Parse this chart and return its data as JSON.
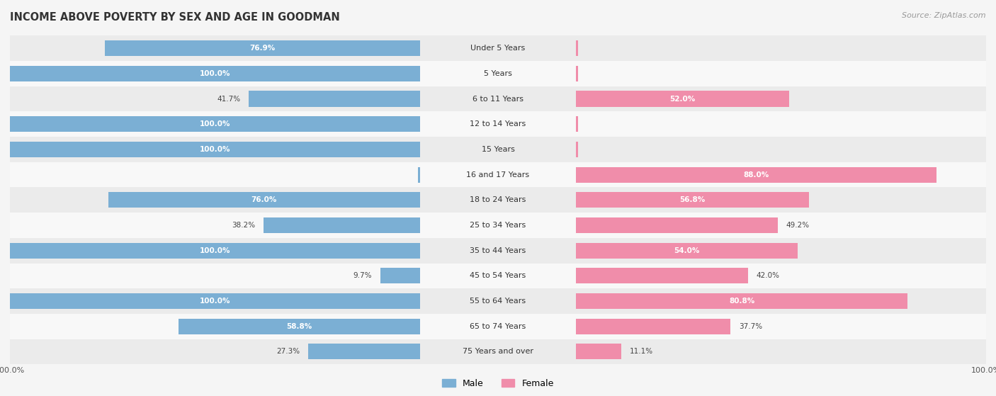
{
  "title": "INCOME ABOVE POVERTY BY SEX AND AGE IN GOODMAN",
  "source": "Source: ZipAtlas.com",
  "categories": [
    "Under 5 Years",
    "5 Years",
    "6 to 11 Years",
    "12 to 14 Years",
    "15 Years",
    "16 and 17 Years",
    "18 to 24 Years",
    "25 to 34 Years",
    "35 to 44 Years",
    "45 to 54 Years",
    "55 to 64 Years",
    "65 to 74 Years",
    "75 Years and over"
  ],
  "male_values": [
    76.9,
    100.0,
    41.7,
    100.0,
    100.0,
    0.0,
    76.0,
    38.2,
    100.0,
    9.7,
    100.0,
    58.8,
    27.3
  ],
  "female_values": [
    0.0,
    0.0,
    52.0,
    0.0,
    0.0,
    88.0,
    56.8,
    49.2,
    54.0,
    42.0,
    80.8,
    37.7,
    11.1
  ],
  "male_color": "#7bafd4",
  "female_color": "#f08daa",
  "bar_height": 0.62,
  "row_bg_even": "#ebebeb",
  "row_bg_odd": "#f8f8f8",
  "fig_bg": "#f5f5f5",
  "max_value": 100.0,
  "label_threshold": 50.0
}
